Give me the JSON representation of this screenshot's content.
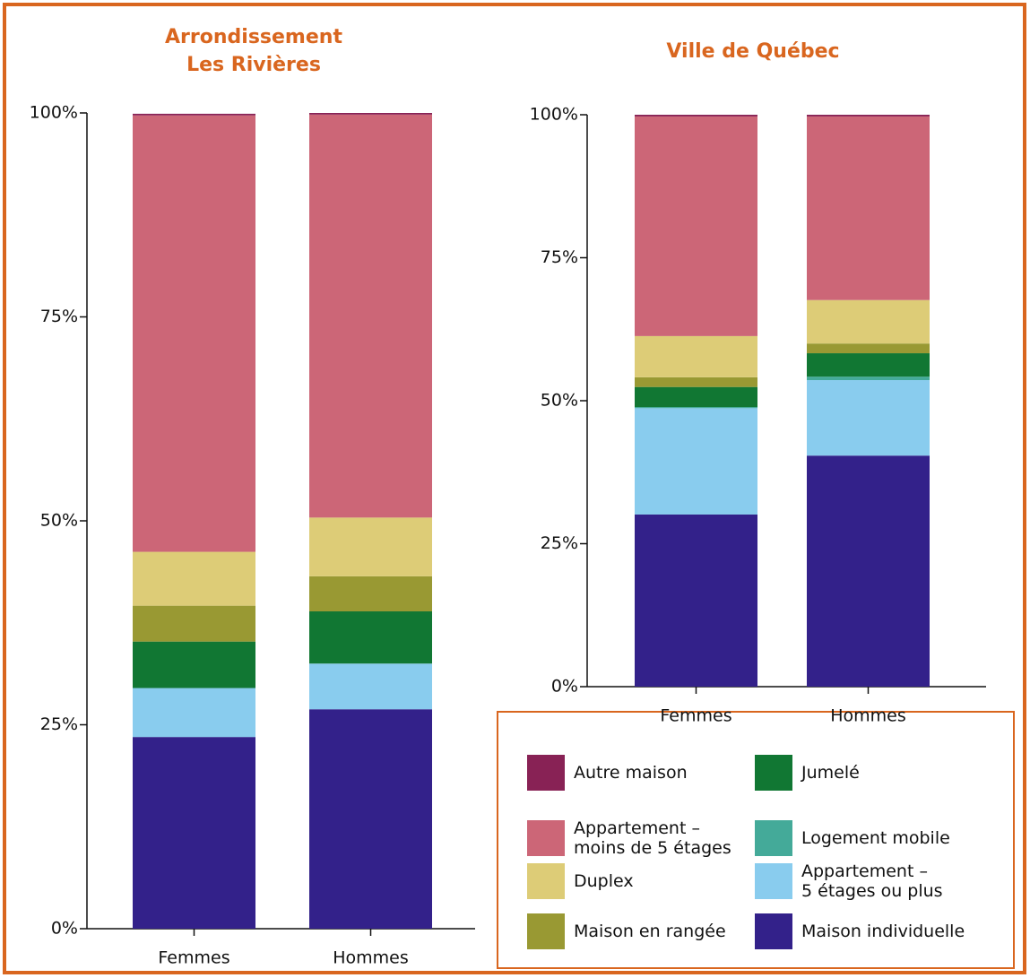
{
  "chart_data": [
    {
      "type": "bar",
      "stacked": true,
      "title": "Arrondissement\nLes Rivières",
      "categories": [
        "Femmes",
        "Hommes"
      ],
      "ylim": [
        0,
        100
      ],
      "yticks": [
        {
          "value": 0,
          "label": "0%"
        },
        {
          "value": 25,
          "label": "25%"
        },
        {
          "value": 50,
          "label": "50%"
        },
        {
          "value": 75,
          "label": "75%"
        },
        {
          "value": 100,
          "label": "100%"
        }
      ],
      "series": [
        {
          "name": "Maison individuelle",
          "color": "#33218a",
          "values": [
            23.5,
            26.9
          ]
        },
        {
          "name": "Appartement –\n5 étages ou plus",
          "color": "#89ccee",
          "values": [
            6.0,
            5.6
          ]
        },
        {
          "name": "Logement mobile",
          "color": "#44aa99",
          "values": [
            0,
            0
          ]
        },
        {
          "name": "Jumelé",
          "color": "#117733",
          "values": [
            5.7,
            6.4
          ]
        },
        {
          "name": "Maison en rangée",
          "color": "#999933",
          "values": [
            4.4,
            4.3
          ]
        },
        {
          "name": "Duplex",
          "color": "#ddcc77",
          "values": [
            6.6,
            7.2
          ]
        },
        {
          "name": "Appartement –\nmoins de 5 étages",
          "color": "#cc6677",
          "values": [
            53.5,
            49.4
          ]
        },
        {
          "name": "Autre maison",
          "color": "#882255",
          "values": [
            0.2,
            0.2
          ]
        }
      ]
    },
    {
      "type": "bar",
      "stacked": true,
      "title": "Ville de Québec",
      "categories": [
        "Femmes",
        "Hommes"
      ],
      "ylim": [
        0,
        100
      ],
      "yticks": [
        {
          "value": 0,
          "label": "0%"
        },
        {
          "value": 25,
          "label": "25%"
        },
        {
          "value": 50,
          "label": "50%"
        },
        {
          "value": 75,
          "label": "75%"
        },
        {
          "value": 100,
          "label": "100%"
        }
      ],
      "series": [
        {
          "values": [
            30.1,
            40.4
          ]
        },
        {
          "values": [
            18.6,
            13.2
          ]
        },
        {
          "values": [
            0.2,
            0.6
          ]
        },
        {
          "values": [
            3.5,
            4.1
          ]
        },
        {
          "values": [
            1.7,
            1.7
          ]
        },
        {
          "values": [
            7.2,
            7.6
          ]
        },
        {
          "values": [
            38.4,
            32.1
          ]
        },
        {
          "values": [
            0.3,
            0.3
          ]
        }
      ]
    }
  ]
}
